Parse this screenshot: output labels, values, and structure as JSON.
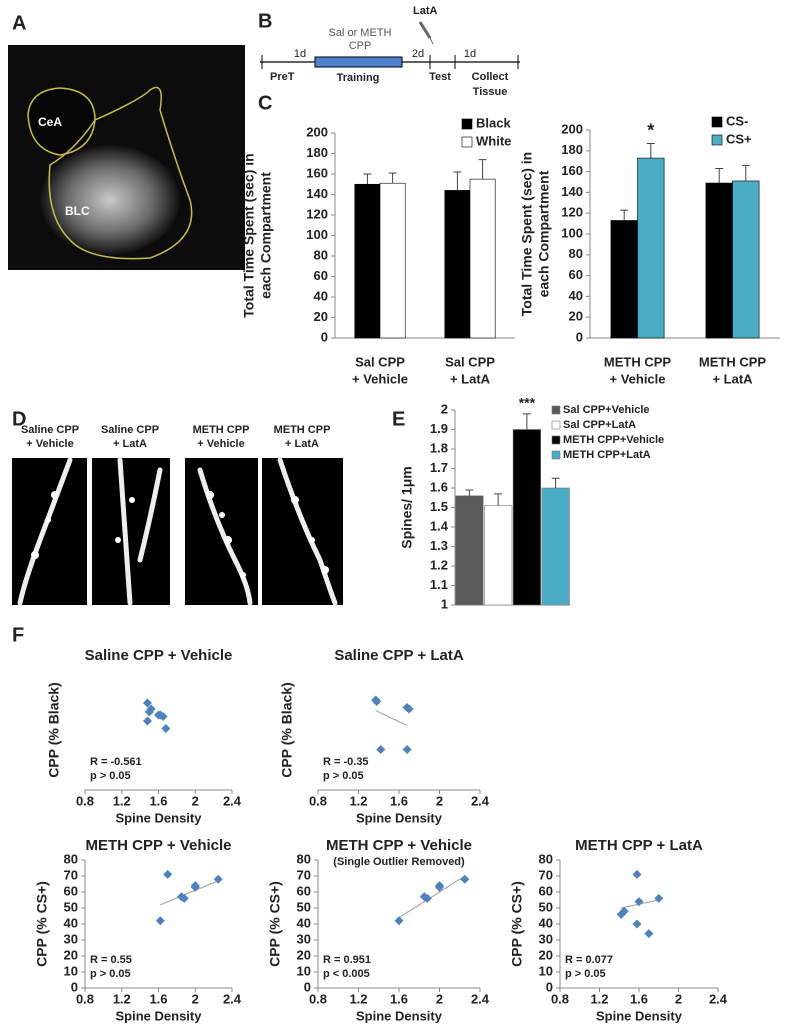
{
  "panel_labels": [
    "A",
    "B",
    "C",
    "D",
    "E",
    "F"
  ],
  "image_a": {
    "labels": [
      "CeA",
      "BLC"
    ]
  },
  "timeline": {
    "drug": "LatA",
    "treatment": [
      "Sal or METH",
      "CPP"
    ],
    "gaps": [
      "1d",
      "2d",
      "1d"
    ],
    "stages": [
      "PreT",
      "Training",
      "Test",
      [
        "Collect",
        "Tissue"
      ]
    ]
  },
  "panel_d": {
    "labels": [
      [
        "Saline CPP",
        "+ Vehicle"
      ],
      [
        "Saline CPP",
        "+ LatA"
      ],
      [
        "METH CPP",
        "+ Vehicle"
      ],
      [
        "METH CPP",
        "+ LatA"
      ]
    ]
  },
  "chart_data": [
    {
      "type": "bar",
      "ylabel": [
        "Total Time Spent (sec) in",
        "each Compartment"
      ],
      "categories": [
        [
          "Sal CPP",
          "+ Vehicle"
        ],
        [
          "Sal CPP",
          "+ LatA"
        ]
      ],
      "series": [
        {
          "name": "Black",
          "color": "#000000",
          "values": [
            150,
            144
          ],
          "errors": [
            10,
            18
          ]
        },
        {
          "name": "White",
          "color": "#ffffff",
          "values": [
            151,
            155
          ],
          "errors": [
            10,
            19
          ]
        }
      ],
      "ylim": [
        0,
        200
      ],
      "yticks": [
        0,
        20,
        40,
        60,
        80,
        100,
        120,
        140,
        160,
        180,
        200
      ],
      "legend": "upper right"
    },
    {
      "type": "bar",
      "ylabel": [
        "Total Time Spent (sec) in",
        "each Compartment"
      ],
      "categories": [
        [
          "METH CPP",
          "+ Vehicle"
        ],
        [
          "METH CPP",
          "+ LatA"
        ]
      ],
      "series": [
        {
          "name": "CS-",
          "color": "#000000",
          "values": [
            113,
            149
          ],
          "errors": [
            10,
            14
          ]
        },
        {
          "name": "CS+",
          "color": "#4bacc6",
          "values": [
            173,
            151
          ],
          "errors": [
            14,
            15
          ]
        }
      ],
      "annotation": "*",
      "ylim": [
        0,
        200
      ],
      "yticks": [
        0,
        20,
        40,
        60,
        80,
        100,
        120,
        140,
        160,
        180,
        200
      ],
      "legend": "upper right"
    },
    {
      "type": "bar",
      "ylabel": [
        "Spines/ 1μm"
      ],
      "categories": [
        "Sal CPP+Vehicle",
        "Sal CPP+LatA",
        "METH CPP+Vehicle",
        "METH CPP+LatA"
      ],
      "colors": [
        "#595959",
        "#ffffff",
        "#000000",
        "#4bacc6"
      ],
      "values": [
        1.56,
        1.51,
        1.9,
        1.6
      ],
      "errors": [
        0.03,
        0.06,
        0.08,
        0.05
      ],
      "annotation": "***",
      "ylim": [
        1,
        2
      ],
      "yticks": [
        1,
        1.1,
        1.2,
        1.3,
        1.4,
        1.5,
        1.6,
        1.7,
        1.8,
        1.9,
        2
      ],
      "legend": "upper right"
    },
    {
      "type": "scatter",
      "title": "Saline CPP + Vehicle",
      "xlabel": "Spine Density",
      "ylabel": "CPP (% Black)",
      "x": [
        1.48,
        1.5,
        1.52,
        1.48,
        1.6,
        1.65,
        1.68,
        1.62
      ],
      "values": [
        58,
        52,
        54,
        46,
        50,
        49,
        41,
        50
      ],
      "color": "#4f81bd",
      "stats": [
        "R = -0.561",
        "p > 0.05"
      ],
      "xlim": [
        0.8,
        2.4
      ],
      "xticks": [
        0.8,
        1.2,
        1.6,
        2,
        2.4
      ],
      "ylim": [
        0,
        80
      ]
    },
    {
      "type": "scatter",
      "title": "Saline CPP + LatA",
      "xlabel": "Spine Density",
      "ylabel": "CPP (% Black)",
      "x": [
        1.37,
        1.38,
        1.68,
        1.7,
        1.42,
        1.68
      ],
      "values": [
        60,
        59,
        55,
        54,
        27,
        27
      ],
      "color": "#4f81bd",
      "trend": {
        "x": [
          1.37,
          1.68
        ],
        "y": [
          53,
          43
        ]
      },
      "stats": [
        "R = -0.35",
        "p > 0.05"
      ],
      "xlim": [
        0.8,
        2.4
      ],
      "xticks": [
        0.8,
        1.2,
        1.6,
        2,
        2.4
      ],
      "ylim": [
        0,
        80
      ]
    },
    {
      "type": "scatter",
      "title": "METH CPP + Vehicle",
      "xlabel": "Spine Density",
      "ylabel": "CPP (% CS+)",
      "x": [
        1.62,
        1.7,
        1.85,
        1.88,
        2,
        2,
        2.25
      ],
      "values": [
        42,
        71,
        57,
        56,
        64,
        63,
        68
      ],
      "color": "#4f81bd",
      "trend": {
        "x": [
          1.62,
          2.25
        ],
        "y": [
          52,
          67
        ]
      },
      "stats": [
        "R = 0.55",
        "p > 0.05"
      ],
      "xlim": [
        0.8,
        2.4
      ],
      "xticks": [
        0.8,
        1.2,
        1.6,
        2,
        2.4
      ],
      "ylim": [
        0,
        80
      ],
      "yticks": [
        0,
        10,
        20,
        30,
        40,
        50,
        60,
        70,
        80
      ]
    },
    {
      "type": "scatter",
      "title": "METH CPP + Vehicle",
      "subtitle": "(Single Outlier Removed)",
      "xlabel": "Spine Density",
      "ylabel": "CPP (% CS+)",
      "x": [
        1.6,
        1.85,
        1.88,
        2,
        2,
        2.25
      ],
      "values": [
        42,
        57,
        56,
        64,
        63,
        68
      ],
      "color": "#4f81bd",
      "trend": {
        "x": [
          1.6,
          2.25
        ],
        "y": [
          44,
          70
        ]
      },
      "stats": [
        "R = 0.951",
        "p < 0.005"
      ],
      "xlim": [
        0.8,
        2.4
      ],
      "xticks": [
        0.8,
        1.2,
        1.6,
        2,
        2.4
      ],
      "ylim": [
        0,
        80
      ],
      "yticks": [
        0,
        10,
        20,
        30,
        40,
        50,
        60,
        70,
        80
      ]
    },
    {
      "type": "scatter",
      "title": "METH CPP + LatA",
      "xlabel": "Spine Density",
      "ylabel": "CPP (% CS+)",
      "x": [
        1.42,
        1.45,
        1.58,
        1.6,
        1.58,
        1.7,
        1.8
      ],
      "values": [
        46,
        48,
        71,
        54,
        40,
        34,
        56
      ],
      "color": "#4f81bd",
      "trend": {
        "x": [
          1.42,
          1.8
        ],
        "y": [
          50,
          55
        ]
      },
      "stats": [
        "R = 0.077",
        "p > 0.05"
      ],
      "xlim": [
        0.8,
        2.4
      ],
      "xticks": [
        0.8,
        1.2,
        1.6,
        2,
        2.4
      ],
      "ylim": [
        0,
        80
      ],
      "yticks": [
        0,
        10,
        20,
        30,
        40,
        50,
        60,
        70,
        80
      ]
    }
  ]
}
